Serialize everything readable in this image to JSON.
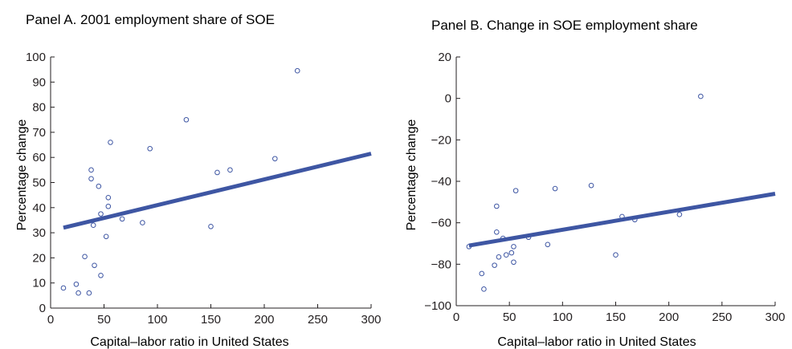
{
  "chart_data": [
    {
      "type": "scatter",
      "title": "Panel A. 2001 employment share of SOE",
      "xlabel": "Capital–labor ratio in United States",
      "ylabel": "Percentage change",
      "xlim": [
        0,
        300
      ],
      "ylim": [
        0,
        100
      ],
      "xticks": [
        "0",
        "50",
        "100",
        "150",
        "200",
        "250",
        "300"
      ],
      "yticks": [
        "0",
        "10",
        "20",
        "30",
        "40",
        "50",
        "60",
        "70",
        "80",
        "90",
        "100"
      ],
      "grid": false,
      "legend": "none",
      "series": [
        {
          "points": [
            {
              "x": 12,
              "y": 8
            },
            {
              "x": 24,
              "y": 9.5
            },
            {
              "x": 26,
              "y": 6
            },
            {
              "x": 32,
              "y": 20.5
            },
            {
              "x": 36,
              "y": 6
            },
            {
              "x": 38,
              "y": 55
            },
            {
              "x": 38,
              "y": 51.5
            },
            {
              "x": 40,
              "y": 33
            },
            {
              "x": 41,
              "y": 17
            },
            {
              "x": 45,
              "y": 48.5
            },
            {
              "x": 47,
              "y": 37.5
            },
            {
              "x": 47,
              "y": 13
            },
            {
              "x": 52,
              "y": 28.5
            },
            {
              "x": 54,
              "y": 44
            },
            {
              "x": 54,
              "y": 40.5
            },
            {
              "x": 56,
              "y": 66
            },
            {
              "x": 67,
              "y": 35.5
            },
            {
              "x": 86,
              "y": 34
            },
            {
              "x": 93,
              "y": 63.5
            },
            {
              "x": 127,
              "y": 75
            },
            {
              "x": 150,
              "y": 32.5
            },
            {
              "x": 156,
              "y": 54
            },
            {
              "x": 168,
              "y": 55
            },
            {
              "x": 210,
              "y": 59.5
            },
            {
              "x": 231,
              "y": 94.5
            }
          ]
        }
      ],
      "fit_line": {
        "x": [
          12,
          300
        ],
        "y": [
          32,
          61.5
        ]
      }
    },
    {
      "type": "scatter",
      "title": "Panel B. Change in SOE employment share",
      "xlabel": "Capital–labor ratio in United States",
      "ylabel": "Percentage change",
      "xlim": [
        0,
        300
      ],
      "ylim": [
        -100,
        20
      ],
      "xticks": [
        "0",
        "50",
        "100",
        "150",
        "200",
        "250",
        "300"
      ],
      "yticks": [
        "20",
        "0",
        "−20",
        "−40",
        "−60",
        "−80",
        "−100"
      ],
      "grid": false,
      "legend": "none",
      "series": [
        {
          "points": [
            {
              "x": 12,
              "y": -71.5
            },
            {
              "x": 24,
              "y": -84.5
            },
            {
              "x": 26,
              "y": -92
            },
            {
              "x": 36,
              "y": -80.5
            },
            {
              "x": 38,
              "y": -52
            },
            {
              "x": 38,
              "y": -64.5
            },
            {
              "x": 40,
              "y": -76.5
            },
            {
              "x": 44,
              "y": -67.5
            },
            {
              "x": 47,
              "y": -75.5
            },
            {
              "x": 52,
              "y": -74.5
            },
            {
              "x": 54,
              "y": -71.5
            },
            {
              "x": 54,
              "y": -79
            },
            {
              "x": 56,
              "y": -44.5
            },
            {
              "x": 68,
              "y": -67
            },
            {
              "x": 86,
              "y": -70.5
            },
            {
              "x": 93,
              "y": -43.5
            },
            {
              "x": 127,
              "y": -42
            },
            {
              "x": 150,
              "y": -75.5
            },
            {
              "x": 156,
              "y": -57
            },
            {
              "x": 168,
              "y": -58.5
            },
            {
              "x": 210,
              "y": -56
            },
            {
              "x": 230,
              "y": 1
            }
          ]
        }
      ],
      "fit_line": {
        "x": [
          12,
          300
        ],
        "y": [
          -71,
          -46
        ]
      }
    }
  ],
  "style": {
    "marker_color": "#3e56a3",
    "line_color": "#3e56a3",
    "axis_color": "#231f20",
    "text_color": "#231f20"
  }
}
